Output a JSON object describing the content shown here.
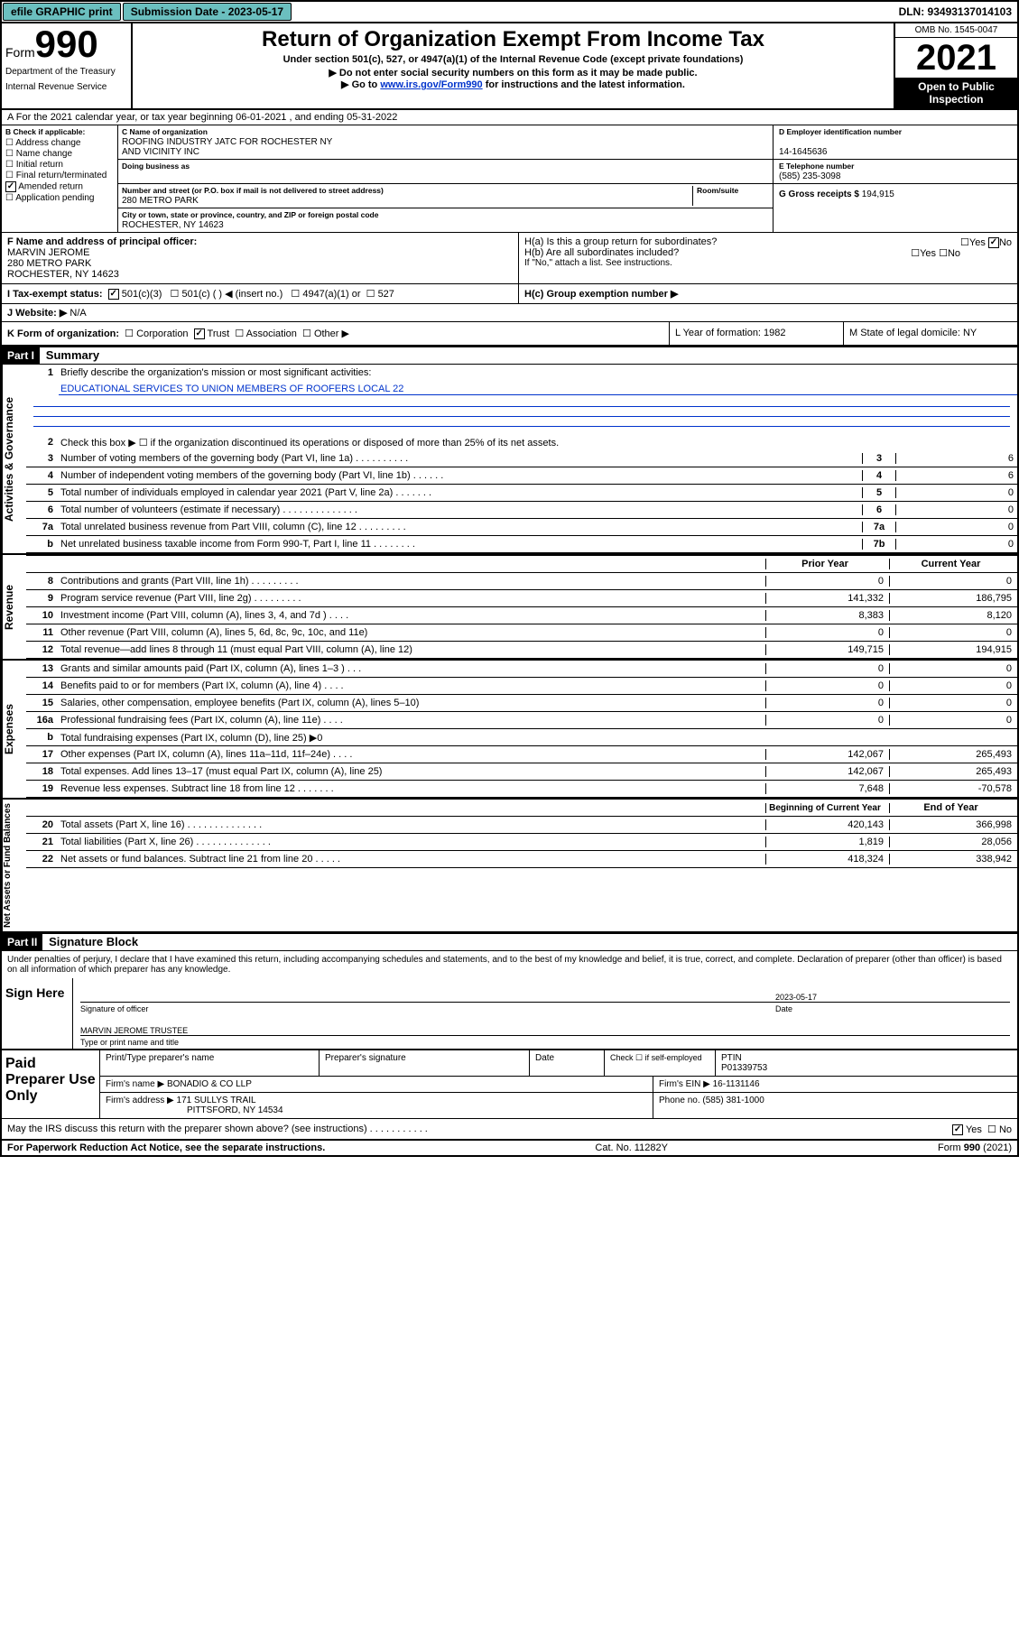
{
  "topbar": {
    "efile": "efile GRAPHIC print",
    "submission": "Submission Date - 2023-05-17",
    "dln": "DLN: 93493137014103"
  },
  "header": {
    "form_label": "Form",
    "form_number": "990",
    "dept": "Department of the Treasury",
    "irs": "Internal Revenue Service",
    "title": "Return of Organization Exempt From Income Tax",
    "sub1": "Under section 501(c), 527, or 4947(a)(1) of the Internal Revenue Code (except private foundations)",
    "sub2": "▶ Do not enter social security numbers on this form as it may be made public.",
    "sub3_pre": "▶ Go to ",
    "sub3_link": "www.irs.gov/Form990",
    "sub3_post": " for instructions and the latest information.",
    "omb": "OMB No. 1545-0047",
    "year": "2021",
    "open": "Open to Public Inspection"
  },
  "secA": {
    "line": "A For the 2021 calendar year, or tax year beginning 06-01-2021   , and ending 05-31-2022"
  },
  "secB": {
    "title": "B Check if applicable:",
    "items": [
      "Address change",
      "Name change",
      "Initial return",
      "Final return/terminated",
      "Amended return",
      "Application pending"
    ]
  },
  "secC": {
    "label": "C Name of organization",
    "name1": "ROOFING INDUSTRY JATC FOR ROCHESTER NY",
    "name2": "AND VICINITY INC",
    "dba": "Doing business as",
    "street_label": "Number and street (or P.O. box if mail is not delivered to street address)",
    "room_label": "Room/suite",
    "street": "280 METRO PARK",
    "city_label": "City or town, state or province, country, and ZIP or foreign postal code",
    "city": "ROCHESTER, NY  14623"
  },
  "secD": {
    "label": "D Employer identification number",
    "ein": "14-1645636"
  },
  "secE": {
    "label": "E Telephone number",
    "phone": "(585) 235-3098"
  },
  "secG": {
    "label": "G Gross receipts $",
    "val": "194,915"
  },
  "secF": {
    "label": "F Name and address of principal officer:",
    "name": "MARVIN JEROME",
    "addr1": "280 METRO PARK",
    "addr2": "ROCHESTER, NY  14623"
  },
  "secH": {
    "a": "H(a)  Is this a group return for subordinates?",
    "b": "H(b)  Are all subordinates included?",
    "note": "If \"No,\" attach a list. See instructions.",
    "c": "H(c)  Group exemption number ▶",
    "yes": "Yes",
    "no": "No"
  },
  "secI": {
    "label": "I    Tax-exempt status:",
    "opt1": "501(c)(3)",
    "opt2": "501(c) (   ) ◀ (insert no.)",
    "opt3": "4947(a)(1) or",
    "opt4": "527"
  },
  "secJ": {
    "label": "J   Website: ▶",
    "val": "N/A"
  },
  "secK": {
    "label": "K Form of organization:",
    "opts": [
      "Corporation",
      "Trust",
      "Association",
      "Other ▶"
    ],
    "yearL": "L Year of formation: 1982",
    "stateM": "M State of legal domicile: NY"
  },
  "part1": {
    "header": "Part I",
    "title": "Summary",
    "labels": {
      "gov": "Activities & Governance",
      "rev": "Revenue",
      "exp": "Expenses",
      "net": "Net Assets or Fund Balances"
    },
    "line1a": "Briefly describe the organization's mission or most significant activities:",
    "line1b": "EDUCATIONAL SERVICES TO UNION MEMBERS OF ROOFERS LOCAL 22",
    "line2": "Check this box ▶ ☐  if the organization discontinued its operations or disposed of more than 25% of its net assets.",
    "rows_gov": [
      {
        "n": "3",
        "d": "Number of voting members of the governing body (Part VI, line 1a)   .    .    .    .    .    .    .    .    .    .",
        "r": "3",
        "v": "6"
      },
      {
        "n": "4",
        "d": "Number of independent voting members of the governing body (Part VI, line 1b)   .    .    .    .    .    .",
        "r": "4",
        "v": "6"
      },
      {
        "n": "5",
        "d": "Total number of individuals employed in calendar year 2021 (Part V, line 2a)   .    .    .    .    .    .    .",
        "r": "5",
        "v": "0"
      },
      {
        "n": "6",
        "d": "Total number of volunteers (estimate if necessary)   .    .    .    .    .    .    .    .    .    .    .    .    .    .",
        "r": "6",
        "v": "0"
      },
      {
        "n": "7a",
        "d": "Total unrelated business revenue from Part VIII, column (C), line 12   .    .    .    .    .    .    .    .    .",
        "r": "7a",
        "v": "0"
      },
      {
        "n": "b",
        "d": "Net unrelated business taxable income from Form 990-T, Part I, line 11   .    .    .    .    .    .    .    .",
        "r": "7b",
        "v": "0"
      }
    ],
    "col_hdr_py": "Prior Year",
    "col_hdr_cy": "Current Year",
    "rows_rev": [
      {
        "n": "8",
        "d": "Contributions and grants (Part VIII, line 1h)   .    .    .    .    .    .    .    .    .",
        "py": "0",
        "cy": "0"
      },
      {
        "n": "9",
        "d": "Program service revenue (Part VIII, line 2g)   .    .    .    .    .    .    .    .    .",
        "py": "141,332",
        "cy": "186,795"
      },
      {
        "n": "10",
        "d": "Investment income (Part VIII, column (A), lines 3, 4, and 7d )   .    .    .    .",
        "py": "8,383",
        "cy": "8,120"
      },
      {
        "n": "11",
        "d": "Other revenue (Part VIII, column (A), lines 5, 6d, 8c, 9c, 10c, and 11e)",
        "py": "0",
        "cy": "0"
      },
      {
        "n": "12",
        "d": "Total revenue—add lines 8 through 11 (must equal Part VIII, column (A), line 12)",
        "py": "149,715",
        "cy": "194,915"
      }
    ],
    "rows_exp": [
      {
        "n": "13",
        "d": "Grants and similar amounts paid (Part IX, column (A), lines 1–3 )   .    .    .",
        "py": "0",
        "cy": "0"
      },
      {
        "n": "14",
        "d": "Benefits paid to or for members (Part IX, column (A), line 4)   .    .    .    .",
        "py": "0",
        "cy": "0"
      },
      {
        "n": "15",
        "d": "Salaries, other compensation, employee benefits (Part IX, column (A), lines 5–10)",
        "py": "0",
        "cy": "0"
      },
      {
        "n": "16a",
        "d": "Professional fundraising fees (Part IX, column (A), line 11e)   .    .    .    .",
        "py": "0",
        "cy": "0"
      },
      {
        "n": "b",
        "d": "Total fundraising expenses (Part IX, column (D), line 25) ▶0",
        "py": "",
        "cy": "",
        "shaded": true
      },
      {
        "n": "17",
        "d": "Other expenses (Part IX, column (A), lines 11a–11d, 11f–24e)   .    .    .    .",
        "py": "142,067",
        "cy": "265,493"
      },
      {
        "n": "18",
        "d": "Total expenses. Add lines 13–17 (must equal Part IX, column (A), line 25)",
        "py": "142,067",
        "cy": "265,493"
      },
      {
        "n": "19",
        "d": "Revenue less expenses. Subtract line 18 from line 12   .    .    .    .    .    .    .",
        "py": "7,648",
        "cy": "-70,578"
      }
    ],
    "col_hdr_boy": "Beginning of Current Year",
    "col_hdr_eoy": "End of Year",
    "rows_net": [
      {
        "n": "20",
        "d": "Total assets (Part X, line 16)   .    .    .    .    .    .    .    .    .    .    .    .    .    .",
        "py": "420,143",
        "cy": "366,998"
      },
      {
        "n": "21",
        "d": "Total liabilities (Part X, line 26)   .    .    .    .    .    .    .    .    .    .    .    .    .    .",
        "py": "1,819",
        "cy": "28,056"
      },
      {
        "n": "22",
        "d": "Net assets or fund balances. Subtract line 21 from line 20   .    .    .    .    .",
        "py": "418,324",
        "cy": "338,942"
      }
    ]
  },
  "part2": {
    "header": "Part II",
    "title": "Signature Block",
    "decl": "Under penalties of perjury, I declare that I have examined this return, including accompanying schedules and statements, and to the best of my knowledge and belief, it is true, correct, and complete. Declaration of preparer (other than officer) is based on all information of which preparer has any knowledge.",
    "sign_here": "Sign Here",
    "sig_officer": "Signature of officer",
    "sig_date": "2023-05-17",
    "date_label": "Date",
    "sig_name": "MARVIN JEROME TRUSTEE",
    "sig_type": "Type or print name and title",
    "paid": "Paid Preparer Use Only",
    "prep_name_label": "Print/Type preparer's name",
    "prep_sig_label": "Preparer's signature",
    "prep_date_label": "Date",
    "check_self": "Check ☐ if self-employed",
    "ptin_label": "PTIN",
    "ptin": "P01339753",
    "firm_name_label": "Firm's name    ▶",
    "firm_name": "BONADIO & CO LLP",
    "firm_ein_label": "Firm's EIN ▶",
    "firm_ein": "16-1131146",
    "firm_addr_label": "Firm's address ▶",
    "firm_addr1": "171 SULLYS TRAIL",
    "firm_addr2": "PITTSFORD, NY  14534",
    "phone_label": "Phone no.",
    "phone": "(585) 381-1000",
    "discuss": "May the IRS discuss this return with the preparer shown above? (see instructions)   .    .    .    .    .    .    .    .    .    .    .",
    "yes": "Yes",
    "no": "No"
  },
  "footer": {
    "left": "For Paperwork Reduction Act Notice, see the separate instructions.",
    "mid": "Cat. No. 11282Y",
    "right": "Form 990 (2021)"
  }
}
